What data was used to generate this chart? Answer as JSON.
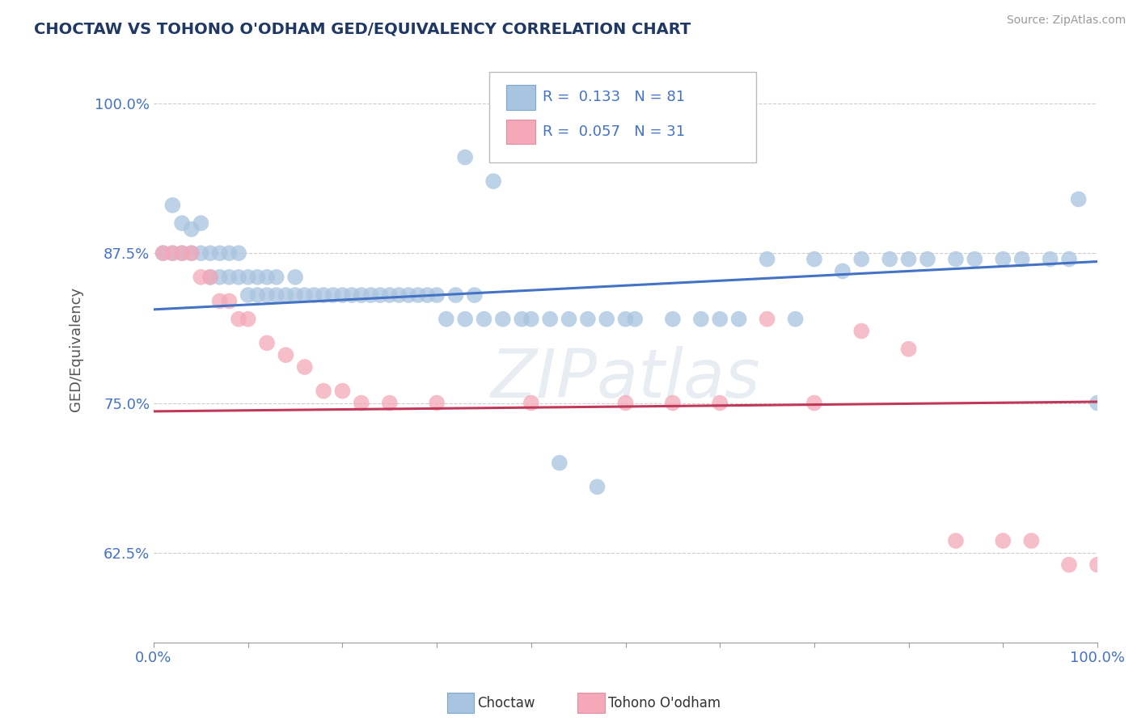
{
  "title": "CHOCTAW VS TOHONO O'ODHAM GED/EQUIVALENCY CORRELATION CHART",
  "source": "Source: ZipAtlas.com",
  "ylabel": "GED/Equivalency",
  "xlim": [
    0.0,
    1.0
  ],
  "ylim": [
    0.55,
    1.04
  ],
  "yticks": [
    0.625,
    0.75,
    0.875,
    1.0
  ],
  "ytick_labels": [
    "62.5%",
    "75.0%",
    "87.5%",
    "100.0%"
  ],
  "xticks": [
    0.0,
    0.1,
    0.2,
    0.3,
    0.4,
    0.5,
    0.6,
    0.7,
    0.8,
    0.9,
    1.0
  ],
  "xtick_labels": [
    "0.0%",
    "",
    "",
    "",
    "",
    "",
    "",
    "",
    "",
    "",
    "100.0%"
  ],
  "blue_r": "0.133",
  "blue_n": "81",
  "pink_r": "0.057",
  "pink_n": "31",
  "blue_color": "#a8c4e0",
  "pink_color": "#f4a8b8",
  "blue_line_color": "#4472c4",
  "pink_line_color": "#c0385a",
  "title_color": "#1f3864",
  "axis_label_color": "#4472c4",
  "background_color": "#ffffff",
  "watermark": "ZIPatlas",
  "blue_scatter_x": [
    0.01,
    0.02,
    0.02,
    0.03,
    0.03,
    0.04,
    0.04,
    0.05,
    0.05,
    0.06,
    0.06,
    0.07,
    0.07,
    0.08,
    0.08,
    0.09,
    0.09,
    0.1,
    0.1,
    0.11,
    0.11,
    0.12,
    0.12,
    0.13,
    0.13,
    0.14,
    0.15,
    0.15,
    0.16,
    0.17,
    0.18,
    0.19,
    0.2,
    0.21,
    0.22,
    0.23,
    0.24,
    0.25,
    0.26,
    0.27,
    0.28,
    0.29,
    0.3,
    0.31,
    0.32,
    0.33,
    0.34,
    0.35,
    0.37,
    0.39,
    0.4,
    0.42,
    0.44,
    0.46,
    0.48,
    0.5,
    0.51,
    0.55,
    0.58,
    0.6,
    0.62,
    0.65,
    0.68,
    0.7,
    0.73,
    0.75,
    0.78,
    0.8,
    0.82,
    0.85,
    0.87,
    0.9,
    0.92,
    0.95,
    0.97,
    0.98,
    1.0,
    0.33,
    0.36,
    0.43,
    0.47
  ],
  "blue_scatter_y": [
    0.875,
    0.915,
    0.875,
    0.9,
    0.875,
    0.895,
    0.875,
    0.9,
    0.875,
    0.875,
    0.855,
    0.875,
    0.855,
    0.875,
    0.855,
    0.875,
    0.855,
    0.855,
    0.84,
    0.855,
    0.84,
    0.855,
    0.84,
    0.84,
    0.855,
    0.84,
    0.855,
    0.84,
    0.84,
    0.84,
    0.84,
    0.84,
    0.84,
    0.84,
    0.84,
    0.84,
    0.84,
    0.84,
    0.84,
    0.84,
    0.84,
    0.84,
    0.84,
    0.82,
    0.84,
    0.82,
    0.84,
    0.82,
    0.82,
    0.82,
    0.82,
    0.82,
    0.82,
    0.82,
    0.82,
    0.82,
    0.82,
    0.82,
    0.82,
    0.82,
    0.82,
    0.87,
    0.82,
    0.87,
    0.86,
    0.87,
    0.87,
    0.87,
    0.87,
    0.87,
    0.87,
    0.87,
    0.87,
    0.87,
    0.87,
    0.92,
    0.75,
    0.955,
    0.935,
    0.7,
    0.68
  ],
  "pink_scatter_x": [
    0.01,
    0.02,
    0.03,
    0.04,
    0.05,
    0.06,
    0.07,
    0.08,
    0.09,
    0.1,
    0.12,
    0.14,
    0.16,
    0.18,
    0.2,
    0.22,
    0.25,
    0.3,
    0.4,
    0.5,
    0.55,
    0.6,
    0.65,
    0.7,
    0.75,
    0.8,
    0.85,
    0.9,
    0.93,
    0.97,
    1.0
  ],
  "pink_scatter_y": [
    0.875,
    0.875,
    0.875,
    0.875,
    0.855,
    0.855,
    0.835,
    0.835,
    0.82,
    0.82,
    0.8,
    0.79,
    0.78,
    0.76,
    0.76,
    0.75,
    0.75,
    0.75,
    0.75,
    0.75,
    0.75,
    0.75,
    0.82,
    0.75,
    0.81,
    0.795,
    0.635,
    0.635,
    0.635,
    0.615,
    0.615
  ],
  "blue_line_x0": 0.0,
  "blue_line_y0": 0.828,
  "blue_line_x1": 1.0,
  "blue_line_y1": 0.868,
  "pink_line_x0": 0.0,
  "pink_line_y0": 0.743,
  "pink_line_x1": 1.0,
  "pink_line_y1": 0.751
}
